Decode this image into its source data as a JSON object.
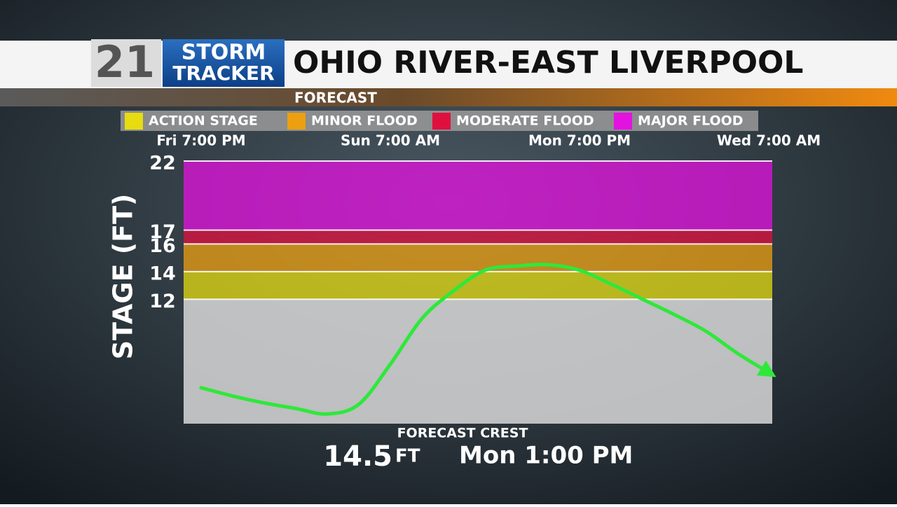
{
  "logo": {
    "number": "21",
    "line1": "STORM",
    "line2": "TRACKER"
  },
  "chart_data": {
    "type": "line",
    "title": "OHIO RIVER-EAST LIVERPOOL",
    "subtitle": "FORECAST",
    "y_label": "STAGE (FT)",
    "stages": [
      {
        "name": "ACTION STAGE",
        "color": "#e6dc10",
        "range": [
          12,
          14
        ]
      },
      {
        "name": "MINOR FLOOD",
        "color": "#eca010",
        "range": [
          14,
          16
        ]
      },
      {
        "name": "MODERATE FLOOD",
        "color": "#e0103e",
        "range": [
          16,
          17
        ]
      },
      {
        "name": "MAJOR FLOOD",
        "color": "#e412e0",
        "range": [
          17,
          22
        ]
      }
    ],
    "x": [
      "Fri 7:00 PM",
      null,
      null,
      null,
      null,
      null,
      "Sun 7:00 AM",
      null,
      null,
      null,
      null,
      null,
      "Mon 7:00 PM",
      null,
      null,
      null,
      null,
      null,
      "Wed 7:00 AM"
    ],
    "series": [
      {
        "color": "#2ee83a",
        "values": [
          5.6,
          5.0,
          4.5,
          4.1,
          3.7,
          4.4,
          7.3,
          10.6,
          12.6,
          14.1,
          14.4,
          14.5,
          14.1,
          13.1,
          12.0,
          10.9,
          9.7,
          8.1,
          6.7
        ]
      }
    ],
    "ylim": [
      3,
      22
    ],
    "yticks": [
      12,
      14,
      16,
      17,
      22
    ],
    "crest": {
      "label": "FORECAST CREST",
      "value": 14.5,
      "unit": "FT",
      "time": "Mon 1:00 PM"
    }
  }
}
